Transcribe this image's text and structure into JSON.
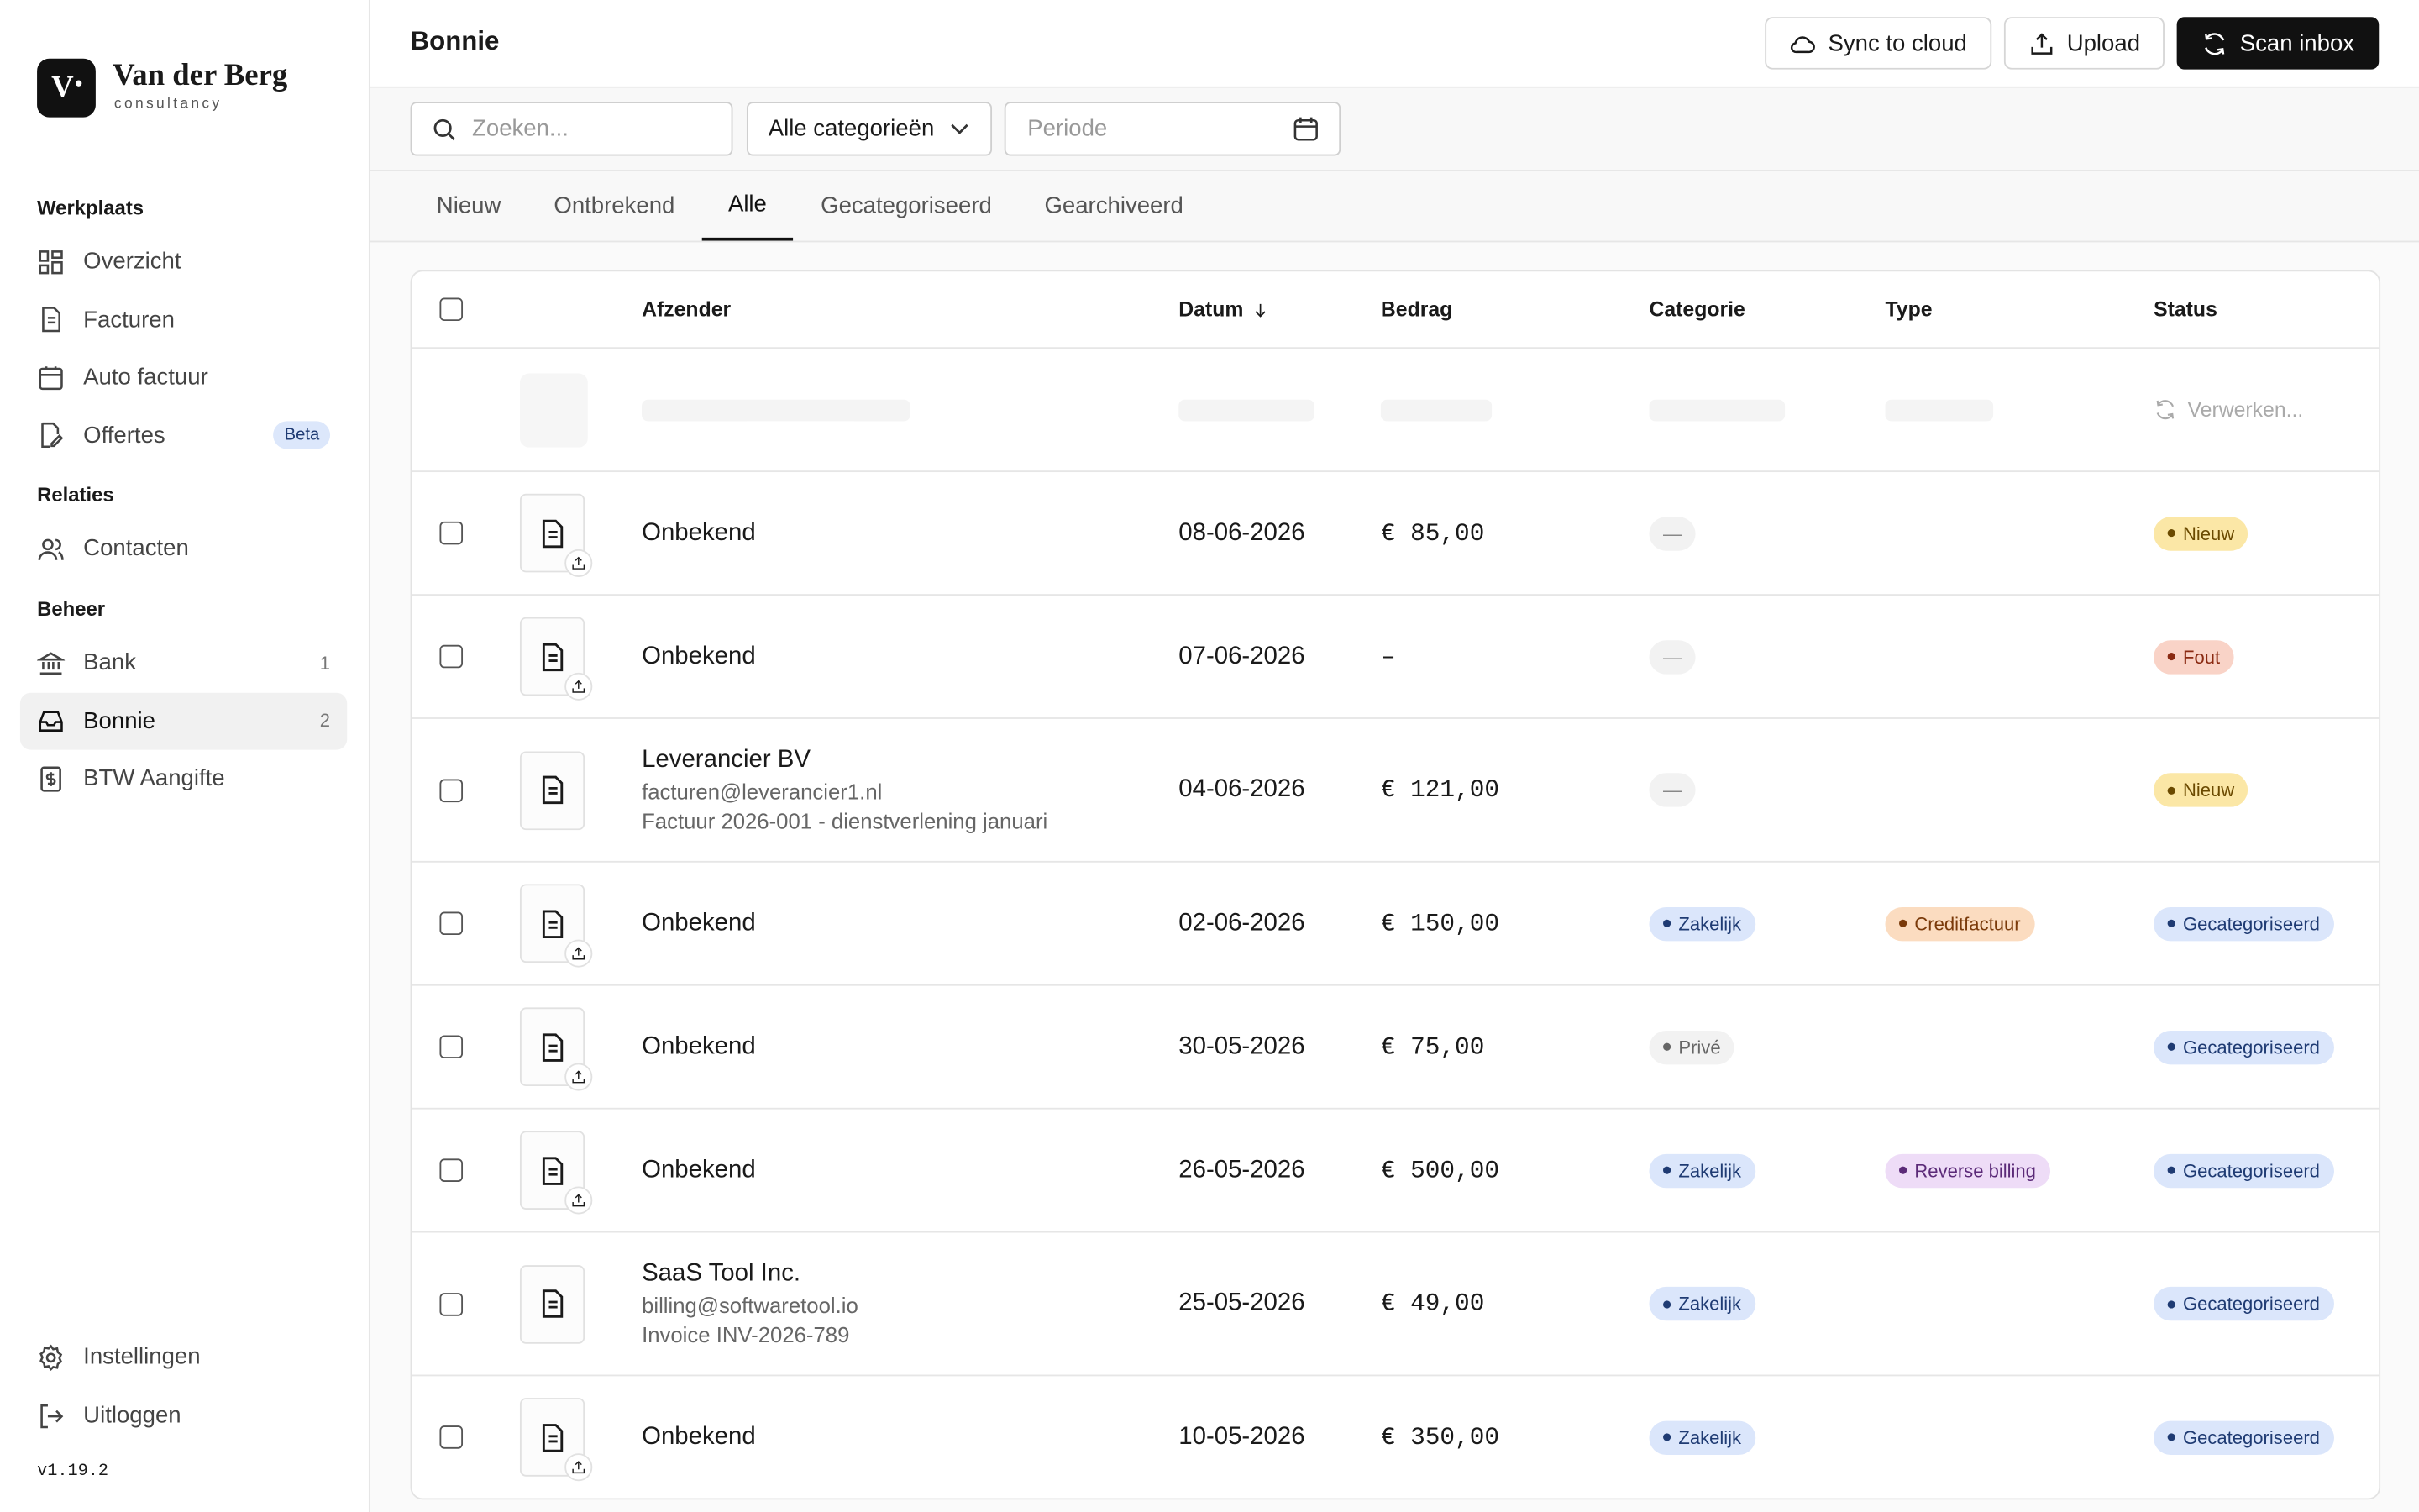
{
  "sidebar": {
    "brand": {
      "logo": "V",
      "name": "Van der Berg",
      "tagline": "consultancy"
    },
    "sections": [
      {
        "title": "Werkplaats",
        "items": [
          {
            "label": "Overzicht"
          },
          {
            "label": "Facturen"
          },
          {
            "label": "Auto factuur"
          },
          {
            "label": "Offertes",
            "badge": "Beta"
          }
        ]
      },
      {
        "title": "Relaties",
        "items": [
          {
            "label": "Contacten"
          }
        ]
      },
      {
        "title": "Beheer",
        "items": [
          {
            "label": "Bank",
            "count": 1
          },
          {
            "label": "Bonnie",
            "count": 2,
            "active": true
          },
          {
            "label": "BTW Aangifte"
          }
        ]
      }
    ],
    "footer": [
      {
        "label": "Instellingen"
      },
      {
        "label": "Uitloggen"
      }
    ],
    "version": "v1.19.2"
  },
  "header": {
    "title": "Bonnie",
    "buttons": [
      {
        "label": "Sync to cloud"
      },
      {
        "label": "Upload"
      },
      {
        "label": "Scan inbox",
        "primary": true
      }
    ]
  },
  "filters": {
    "search_placeholder": "Zoeken...",
    "category": "Alle categorieën",
    "period_placeholder": "Periode"
  },
  "tabs": {
    "items": [
      "Nieuw",
      "Ontbrekend",
      "Alle",
      "Gecategoriseerd",
      "Gearchiveerd"
    ],
    "active": 2
  },
  "table": {
    "columns": [
      "Afzender",
      "Datum",
      "Bedrag",
      "Categorie",
      "Type",
      "Status"
    ],
    "sorted_column": 1,
    "loading_row": {
      "status": "Verwerken..."
    },
    "rows": [
      {
        "sender": "Onbekend",
        "date": "08-06-2026",
        "amount": "€ 85,00",
        "category": {
          "label": "—",
          "tone": "empty"
        },
        "status": {
          "label": "Nieuw",
          "tone": "yellow"
        }
      },
      {
        "sender": "Onbekend",
        "date": "07-06-2026",
        "amount": "–",
        "category": {
          "label": "—",
          "tone": "empty"
        },
        "status": {
          "label": "Fout",
          "tone": "red"
        }
      },
      {
        "sender": "Leverancier BV",
        "email": "facturen@leverancier1.nl",
        "note": "Factuur 2026-001 - dienstverlening januari",
        "date": "04-06-2026",
        "amount": "€ 121,00",
        "category": {
          "label": "—",
          "tone": "empty"
        },
        "status": {
          "label": "Nieuw",
          "tone": "yellow"
        }
      },
      {
        "sender": "Onbekend",
        "date": "02-06-2026",
        "amount": "€ 150,00",
        "category": {
          "label": "Zakelijk",
          "tone": "blue"
        },
        "type": {
          "label": "Creditfactuur",
          "tone": "orange"
        },
        "status": {
          "label": "Gecategoriseerd",
          "tone": "blue"
        }
      },
      {
        "sender": "Onbekend",
        "date": "30-05-2026",
        "amount": "€ 75,00",
        "category": {
          "label": "Privé",
          "tone": "gray"
        },
        "status": {
          "label": "Gecategoriseerd",
          "tone": "blue"
        }
      },
      {
        "sender": "Onbekend",
        "date": "26-05-2026",
        "amount": "€ 500,00",
        "category": {
          "label": "Zakelijk",
          "tone": "blue"
        },
        "type": {
          "label": "Reverse billing",
          "tone": "purple"
        },
        "status": {
          "label": "Gecategoriseerd",
          "tone": "blue"
        }
      },
      {
        "sender": "SaaS Tool Inc.",
        "email": "billing@softwaretool.io",
        "note": "Invoice INV-2026-789",
        "date": "25-05-2026",
        "amount": "€ 49,00",
        "category": {
          "label": "Zakelijk",
          "tone": "blue"
        },
        "status": {
          "label": "Gecategoriseerd",
          "tone": "blue"
        }
      },
      {
        "sender": "Onbekend",
        "date": "10-05-2026",
        "amount": "€ 350,00",
        "category": {
          "label": "Zakelijk",
          "tone": "blue"
        },
        "status": {
          "label": "Gecategoriseerd",
          "tone": "blue"
        }
      }
    ]
  }
}
